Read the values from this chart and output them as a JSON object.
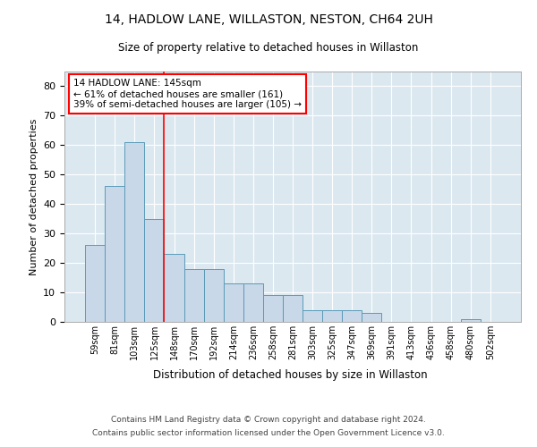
{
  "title": "14, HADLOW LANE, WILLASTON, NESTON, CH64 2UH",
  "subtitle": "Size of property relative to detached houses in Willaston",
  "xlabel": "Distribution of detached houses by size in Willaston",
  "ylabel": "Number of detached properties",
  "categories": [
    "59sqm",
    "81sqm",
    "103sqm",
    "125sqm",
    "148sqm",
    "170sqm",
    "192sqm",
    "214sqm",
    "236sqm",
    "258sqm",
    "281sqm",
    "303sqm",
    "325sqm",
    "347sqm",
    "369sqm",
    "391sqm",
    "413sqm",
    "436sqm",
    "458sqm",
    "480sqm",
    "502sqm"
  ],
  "values": [
    26,
    46,
    61,
    35,
    23,
    18,
    18,
    13,
    13,
    9,
    9,
    4,
    4,
    4,
    3,
    0,
    0,
    0,
    0,
    1,
    0
  ],
  "bar_color": "#c8d8e8",
  "bar_edge_color": "#5a9ab8",
  "grid_color": "#cccccc",
  "axes_bg_color": "#dce8f0",
  "annotation_line1": "14 HADLOW LANE: 145sqm",
  "annotation_line2": "← 61% of detached houses are smaller (161)",
  "annotation_line3": "39% of semi-detached houses are larger (105) →",
  "property_line_x": 3.5,
  "ylim": [
    0,
    85
  ],
  "yticks": [
    0,
    10,
    20,
    30,
    40,
    50,
    60,
    70,
    80
  ],
  "footer_line1": "Contains HM Land Registry data © Crown copyright and database right 2024.",
  "footer_line2": "Contains public sector information licensed under the Open Government Licence v3.0."
}
